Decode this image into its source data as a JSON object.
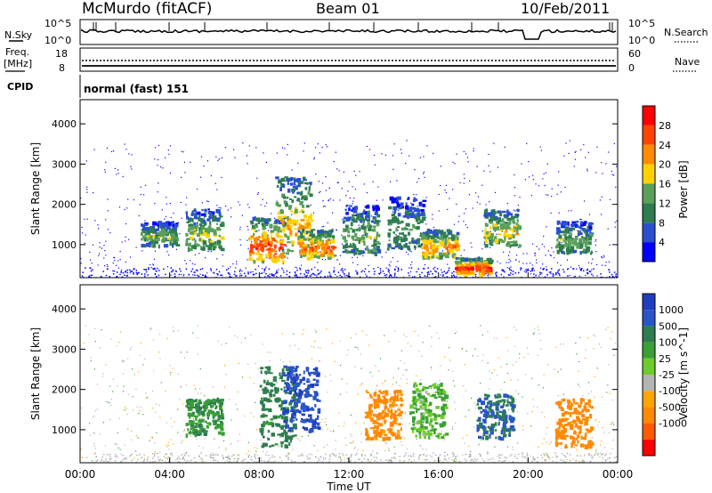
{
  "header": {
    "station": "McMurdo (fitACF)",
    "beam": "Beam 01",
    "date": "10/Feb/2011"
  },
  "noise_panel": {
    "left_label": "N.Sky",
    "right_label": "N.Search",
    "left_ticks": [
      "10^5",
      "10^0"
    ],
    "right_ticks": [
      "10^5",
      "10^0"
    ]
  },
  "freq_panel": {
    "left_label_1": "Freq.",
    "left_label_2": "[MHz]",
    "right_label": "Nave",
    "left_ticks": [
      "18",
      "8"
    ],
    "right_ticks": [
      "60",
      "0"
    ]
  },
  "cpid_panel": {
    "label": "CPID",
    "value": "normal (fast) 151"
  },
  "x_axis": {
    "title": "Time UT",
    "ticks": [
      "00:00",
      "04:00",
      "08:00",
      "12:00",
      "16:00",
      "20:00",
      "00:00"
    ]
  },
  "colors": {
    "power_scale": [
      "#0000ff",
      "#2b4fd0",
      "#2e7d4f",
      "#5aa05a",
      "#ffd200",
      "#ff8c00",
      "#ff4500",
      "#ff0000"
    ],
    "velocity_scale": [
      "#1e3fbf",
      "#2a55c8",
      "#2e7d4f",
      "#3aa035",
      "#6ccc2a",
      "#b4b4b4",
      "#ffa500",
      "#ff8a00",
      "#ff5a00",
      "#ff0000"
    ]
  },
  "chart_data": [
    {
      "type": "heatmap",
      "title": "",
      "xlabel": "",
      "ylabel": "Slant Range [km]",
      "x_range_hours": [
        0,
        24
      ],
      "ylim": [
        180,
        4600
      ],
      "yticks": [
        1000,
        2000,
        3000,
        4000
      ],
      "colorbar": {
        "label": "Power [dB]",
        "ticks": [
          4,
          8,
          12,
          16,
          20,
          24,
          28
        ]
      },
      "echo_regions": [
        {
          "t": 3.5,
          "range": [
            1000,
            1600
          ],
          "value": 14
        },
        {
          "t": 5.5,
          "range": [
            900,
            1900
          ],
          "value": 16
        },
        {
          "t": 8.3,
          "range": [
            600,
            1700
          ],
          "value": 26
        },
        {
          "t": 9.5,
          "range": [
            800,
            2700
          ],
          "value": 20
        },
        {
          "t": 10.5,
          "range": [
            700,
            1400
          ],
          "value": 24
        },
        {
          "t": 12.5,
          "range": [
            800,
            2000
          ],
          "value": 14
        },
        {
          "t": 14.5,
          "range": [
            900,
            2200
          ],
          "value": 12
        },
        {
          "t": 16.0,
          "range": [
            700,
            1400
          ],
          "value": 22
        },
        {
          "t": 17.5,
          "range": [
            300,
            700
          ],
          "value": 28
        },
        {
          "t": 18.8,
          "range": [
            1000,
            1900
          ],
          "value": 18
        },
        {
          "t": 22.0,
          "range": [
            800,
            1600
          ],
          "value": 14
        }
      ]
    },
    {
      "type": "heatmap",
      "title": "",
      "xlabel": "Time UT",
      "ylabel": "Slant Range [km]",
      "x_range_hours": [
        0,
        24
      ],
      "ylim": [
        180,
        4600
      ],
      "yticks": [
        1000,
        2000,
        3000,
        4000
      ],
      "colorbar": {
        "label": "Velocity [m s^-1]",
        "ticks": [
          1000,
          500,
          100,
          25,
          -25,
          -100,
          -500,
          -1000
        ]
      },
      "echo_regions": [
        {
          "t": 5.5,
          "range": [
            900,
            1800
          ],
          "value": 100
        },
        {
          "t": 8.8,
          "range": [
            600,
            2600
          ],
          "value": 150
        },
        {
          "t": 9.8,
          "range": [
            1000,
            2600
          ],
          "value": 700
        },
        {
          "t": 13.5,
          "range": [
            800,
            2000
          ],
          "value": -150
        },
        {
          "t": 15.5,
          "range": [
            800,
            2200
          ],
          "value": 60
        },
        {
          "t": 18.5,
          "range": [
            800,
            1900
          ],
          "value": 300
        },
        {
          "t": 22.0,
          "range": [
            600,
            1800
          ],
          "value": -200
        }
      ]
    }
  ]
}
